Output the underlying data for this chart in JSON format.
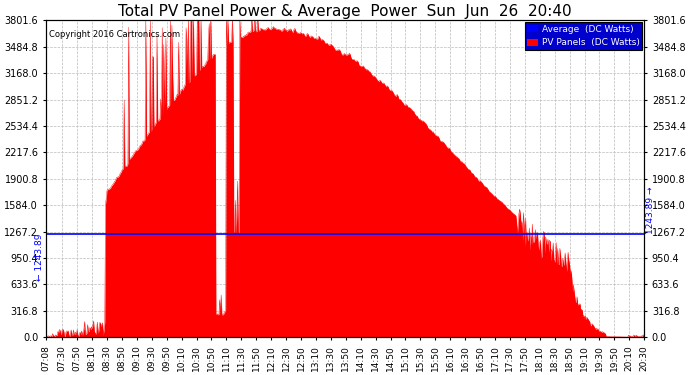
{
  "title": "Total PV Panel Power & Average  Power  Sun  Jun  26  20:40",
  "copyright": "Copyright 2016 Cartronics.com",
  "legend_avg": "Average  (DC Watts)",
  "legend_pv": "PV Panels  (DC Watts)",
  "average_value": 1243.89,
  "ymax": 3801.6,
  "yticks": [
    0.0,
    316.8,
    633.6,
    950.4,
    1267.2,
    1584.0,
    1900.8,
    2217.6,
    2534.4,
    2851.2,
    3168.0,
    3484.8,
    3801.6
  ],
  "background_color": "#ffffff",
  "plot_bg_color": "#ffffff",
  "grid_color": "#bbbbbb",
  "fill_color": "#ff0000",
  "line_color": "#ff0000",
  "avg_line_color": "#0000ff",
  "title_color": "#000000",
  "copyright_color": "#000000",
  "title_fontsize": 11,
  "time_labels": [
    "07:08",
    "07:30",
    "07:50",
    "08:10",
    "08:30",
    "08:50",
    "09:10",
    "09:30",
    "09:50",
    "10:10",
    "10:30",
    "10:50",
    "11:10",
    "11:30",
    "11:50",
    "12:10",
    "12:30",
    "12:50",
    "13:10",
    "13:30",
    "13:50",
    "14:10",
    "14:30",
    "14:50",
    "15:10",
    "15:30",
    "15:50",
    "16:10",
    "16:30",
    "16:50",
    "17:10",
    "17:30",
    "17:50",
    "18:10",
    "18:30",
    "18:50",
    "19:10",
    "19:30",
    "19:50",
    "20:10",
    "20:30"
  ]
}
